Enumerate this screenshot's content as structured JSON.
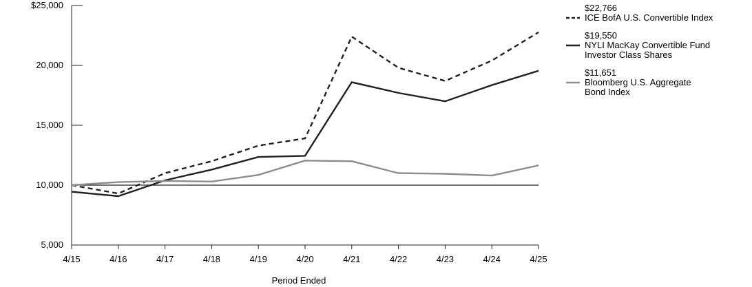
{
  "chart_data": {
    "type": "line",
    "title": "",
    "xlabel": "Period Ended",
    "ylabel": "",
    "categories": [
      "4/15",
      "4/16",
      "4/17",
      "4/18",
      "4/19",
      "4/20",
      "4/21",
      "4/22",
      "4/23",
      "4/24",
      "4/25"
    ],
    "y_ticks": [
      "$25,000",
      "20,000",
      "15,000",
      "10,000",
      "5,000"
    ],
    "y_tick_values": [
      25000,
      20000,
      15000,
      10000,
      5000
    ],
    "ylim": [
      5000,
      25000
    ],
    "reference_line": 10000,
    "grid": false,
    "legend_position": "right",
    "series": [
      {
        "name": "ICE BofA U.S. Convertible Index",
        "legend_value": "$22,766",
        "legend_lines": [
          "ICE BofA U.S. Convertible Index"
        ],
        "style": "dashed",
        "color": "#231f20",
        "values": [
          10000,
          9300,
          11000,
          12000,
          13300,
          13900,
          22400,
          19800,
          18700,
          20400,
          22766
        ]
      },
      {
        "name": "NYLI MacKay Convertible Fund Investor Class Shares",
        "legend_value": "$19,550",
        "legend_lines": [
          "NYLI MacKay Convertible Fund",
          "Investor Class Shares"
        ],
        "style": "solid",
        "color": "#231f20",
        "values": [
          9450,
          9080,
          10400,
          11300,
          12350,
          12450,
          18600,
          17700,
          17000,
          18350,
          19550
        ]
      },
      {
        "name": "Bloomberg U.S. Aggregate Bond Index",
        "legend_value": "$11,651",
        "legend_lines": [
          "Bloomberg U.S. Aggregate",
          "Bond Index"
        ],
        "style": "solid",
        "color": "#8c8c8c",
        "values": [
          10000,
          10250,
          10350,
          10300,
          10850,
          12050,
          12000,
          11000,
          10950,
          10800,
          11651
        ]
      }
    ]
  }
}
